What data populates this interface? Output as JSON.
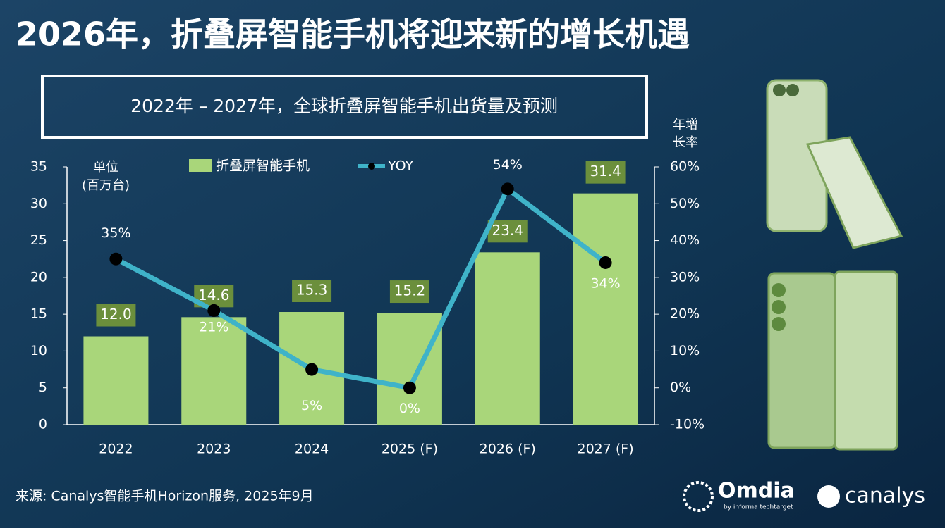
{
  "chart_data": {
    "type": "bar",
    "title": "2026年，折叠屏智能手机将迎来新的增长机遇",
    "subtitle": "2022年 – 2027年，全球折叠屏智能手机出货量及预测",
    "y_label": [
      "单位",
      "(百万台)"
    ],
    "y2_label": [
      "年增",
      "长率"
    ],
    "categories": [
      "2022",
      "2023",
      "2024",
      "2025 (F)",
      "2026 (F)",
      "2027 (F)"
    ],
    "series": [
      {
        "name": "折叠屏智能手机",
        "type": "bar",
        "color": "#a9d67a",
        "values": [
          12.0,
          14.6,
          15.3,
          15.2,
          23.4,
          31.4
        ],
        "value_labels": [
          "12.0",
          "14.6",
          "15.3",
          "15.2",
          "23.4",
          "31.4"
        ]
      },
      {
        "name": "YOY",
        "type": "line",
        "axis": "y2",
        "color": "#3fb3c9",
        "values": [
          35,
          21,
          5,
          0,
          54,
          34
        ],
        "value_labels": [
          "35%",
          "21%",
          "5%",
          "0%",
          "54%",
          "34%"
        ]
      }
    ],
    "ylim": [
      0,
      35
    ],
    "yticks": [
      0,
      5,
      10,
      15,
      20,
      25,
      30,
      35
    ],
    "y2lim": [
      -10,
      60
    ],
    "y2ticks": [
      {
        "value": -10,
        "label": "-10%"
      },
      {
        "value": 0,
        "label": "0%"
      },
      {
        "value": 10,
        "label": "10%"
      },
      {
        "value": 20,
        "label": "20%"
      },
      {
        "value": 30,
        "label": "30%"
      },
      {
        "value": 40,
        "label": "40%"
      },
      {
        "value": 50,
        "label": "50%"
      },
      {
        "value": 60,
        "label": "60%"
      }
    ],
    "source": "来源: Canalys智能手机Horizon服务, 2025年9月"
  },
  "brands": {
    "omdia": "Omdia",
    "omdia_sub": "by informa techtarget",
    "canalys": "canalys"
  }
}
